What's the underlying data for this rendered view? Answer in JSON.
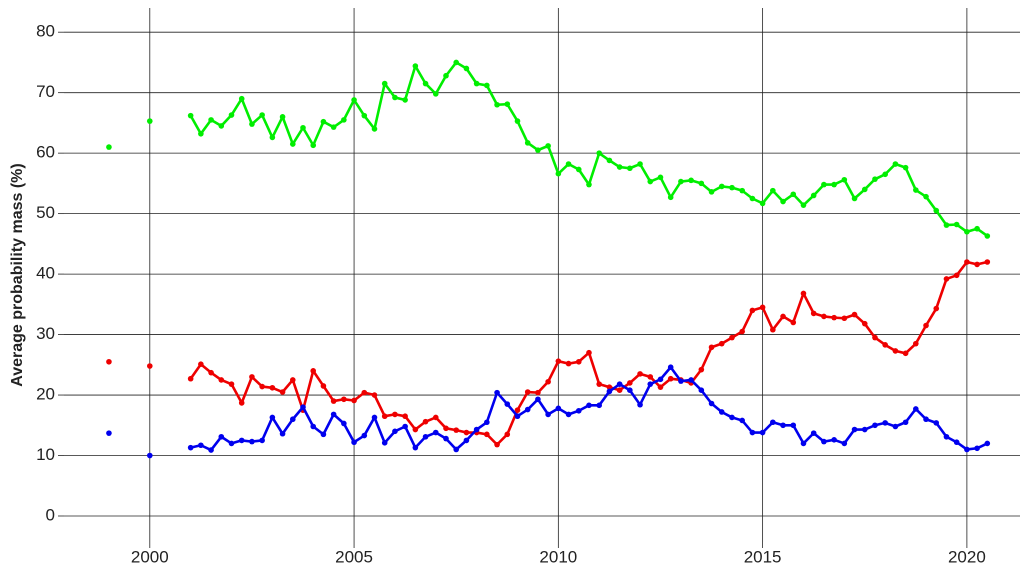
{
  "chart_data": {
    "type": "line",
    "y_label": "Average probability mass (%)",
    "x": [
      1999,
      1999.5,
      2000,
      2000.5,
      2001,
      2001.25,
      2001.5,
      2001.75,
      2002,
      2002.25,
      2002.5,
      2002.75,
      2003,
      2003.25,
      2003.5,
      2003.75,
      2004,
      2004.25,
      2004.5,
      2004.75,
      2005,
      2005.25,
      2005.5,
      2005.75,
      2006,
      2006.25,
      2006.5,
      2006.75,
      2007,
      2007.25,
      2007.5,
      2007.75,
      2008,
      2008.25,
      2008.5,
      2008.75,
      2009,
      2009.25,
      2009.5,
      2009.75,
      2010,
      2010.25,
      2010.5,
      2010.75,
      2011,
      2011.25,
      2011.5,
      2011.75,
      2012,
      2012.25,
      2012.5,
      2012.75,
      2013,
      2013.25,
      2013.5,
      2013.75,
      2014,
      2014.25,
      2014.5,
      2014.75,
      2015,
      2015.25,
      2015.5,
      2015.75,
      2016,
      2016.25,
      2016.5,
      2016.75,
      2017,
      2017.25,
      2017.5,
      2017.75,
      2018,
      2018.25,
      2018.5,
      2018.75,
      2019,
      2019.25,
      2019.5,
      2019.75,
      2020,
      2020.25,
      2020.5
    ],
    "series": [
      {
        "color": "#00ee00",
        "values": [
          61,
          null,
          65.3,
          null,
          66.2,
          63.2,
          65.5,
          64.5,
          66.3,
          69,
          64.8,
          66.3,
          62.6,
          66,
          61.5,
          64.2,
          61.3,
          65.2,
          64.3,
          65.5,
          68.8,
          66.2,
          64,
          71.5,
          69.2,
          68.8,
          74.4,
          71.5,
          69.8,
          72.8,
          75,
          74,
          71.5,
          71.2,
          68,
          68.1,
          65.3,
          61.7,
          60.5,
          61.2,
          56.6,
          58.2,
          57.3,
          54.8,
          60,
          58.8,
          57.7,
          57.5,
          58.2,
          55.3,
          56,
          52.7,
          55.3,
          55.5,
          55,
          53.6,
          54.5,
          54.3,
          53.8,
          52.5,
          51.7,
          53.8,
          52,
          53.2,
          51.4,
          53,
          54.8,
          54.8,
          55.6,
          52.5,
          54,
          55.7,
          56.5,
          58.2,
          57.6,
          53.9,
          52.8,
          50.5,
          48.1,
          48.2,
          47,
          47.5,
          46.3
        ]
      },
      {
        "color": "#ee0000",
        "values": [
          25.5,
          null,
          24.8,
          null,
          22.7,
          25.1,
          23.7,
          22.5,
          21.8,
          18.7,
          23,
          21.4,
          21.2,
          20.5,
          22.5,
          17.5,
          24,
          21.5,
          19,
          19.3,
          19.1,
          20.4,
          20,
          16.5,
          16.8,
          16.5,
          14.3,
          15.6,
          16.3,
          14.5,
          14.2,
          13.8,
          13.8,
          13.5,
          11.8,
          13.5,
          17.5,
          20.5,
          20.4,
          22.2,
          25.6,
          25.2,
          25.5,
          27,
          21.8,
          21.3,
          20.8,
          22,
          23.5,
          23,
          21.3,
          22.7,
          22.5,
          22,
          24.2,
          27.9,
          28.5,
          29.5,
          30.5,
          34,
          34.5,
          30.8,
          33,
          32,
          36.8,
          33.5,
          33,
          32.8,
          32.7,
          33.3,
          31.8,
          29.5,
          28.3,
          27.3,
          26.9,
          28.5,
          31.5,
          34.3,
          39.2,
          39.8,
          42,
          41.6,
          42
        ]
      },
      {
        "color": "#0000ee",
        "values": [
          13.7,
          null,
          10,
          null,
          11.3,
          11.7,
          10.9,
          13.1,
          12,
          12.5,
          12.3,
          12.5,
          16.3,
          13.6,
          16,
          18,
          14.8,
          13.5,
          16.8,
          15.3,
          12.2,
          13.3,
          16.3,
          12.1,
          14,
          14.8,
          11.3,
          13.1,
          13.8,
          12.8,
          11,
          12.5,
          14.3,
          15.5,
          20.4,
          18.5,
          16.5,
          17.6,
          19.3,
          16.8,
          17.8,
          16.8,
          17.4,
          18.3,
          18.3,
          20.6,
          21.8,
          20.8,
          18.4,
          21.8,
          22.6,
          24.6,
          22.3,
          22.5,
          20.8,
          18.6,
          17.2,
          16.3,
          15.8,
          13.8,
          13.8,
          15.5,
          15,
          15,
          12,
          13.7,
          12.3,
          12.6,
          12,
          14.3,
          14.3,
          15,
          15.4,
          14.8,
          15.5,
          17.7,
          16,
          15.4,
          13.1,
          12.2,
          11,
          11.2,
          12
        ]
      }
    ],
    "xlim": [
      1997.9,
      2021.3
    ],
    "xticks": [
      2000,
      2005,
      2010,
      2015,
      2020
    ],
    "ylim": [
      -4.3,
      84
    ],
    "yticks": [
      0,
      10,
      20,
      30,
      40,
      50,
      60,
      70,
      80
    ],
    "grid": true
  }
}
